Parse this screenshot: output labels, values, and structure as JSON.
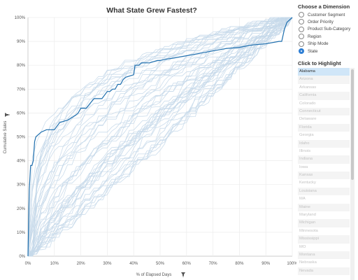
{
  "chart_data": {
    "type": "line",
    "title": "What State Grew Fastest?",
    "xlabel": "% of Elapsed Days",
    "ylabel": "Cumulative Sales",
    "x_ticks": [
      "0%",
      "10%",
      "20%",
      "30%",
      "40%",
      "50%",
      "60%",
      "70%",
      "80%",
      "90%",
      "100%"
    ],
    "y_ticks": [
      "0%",
      "10%",
      "20%",
      "30%",
      "40%",
      "50%",
      "60%",
      "70%",
      "80%",
      "90%",
      "100%"
    ],
    "xlim": [
      0,
      100
    ],
    "ylim": [
      0,
      100
    ],
    "grid": true,
    "highlighted_color": "#1f6fae",
    "background_series_color": "#c6d9ea",
    "highlighted_series": {
      "name": "Alabama",
      "x": [
        0,
        0.5,
        1,
        1.5,
        2,
        2.5,
        3,
        4,
        5,
        7,
        9,
        10,
        12,
        15,
        18,
        19,
        20,
        22,
        25,
        28,
        30,
        31,
        32,
        33,
        34,
        35,
        36,
        37,
        40,
        40.5,
        42,
        43,
        46,
        49,
        50,
        52,
        55,
        60,
        65,
        70,
        75,
        80,
        85,
        90,
        95,
        96,
        97,
        98,
        100
      ],
      "y": [
        0,
        28,
        38,
        38,
        40,
        48,
        50,
        51,
        52,
        53,
        53,
        53,
        56,
        57,
        59,
        60,
        62,
        62,
        66,
        66,
        69,
        69,
        70,
        70,
        72,
        72,
        74,
        75,
        76,
        80,
        80,
        81,
        81,
        82,
        82,
        82.5,
        83,
        84,
        85,
        86,
        87,
        87.5,
        88.5,
        89,
        90,
        90,
        95,
        98,
        100
      ]
    },
    "background_series_count": 48
  },
  "dimension_panel": {
    "title": "Choose a Dimension",
    "options": [
      "Customer Segment",
      "Order Priority",
      "Product Sub-Category",
      "Region",
      "Ship Mode",
      "State"
    ],
    "selected": "State",
    "accent_color": "#2f7fd4"
  },
  "highlight_panel": {
    "title": "Click to Highlight",
    "items": [
      "Alabama",
      "Arizona",
      "Arkansas",
      "California",
      "Colorado",
      "Connecticut",
      "Delaware",
      "Florida",
      "Georgia",
      "Idaho",
      "Illinois",
      "Indiana",
      "Iowa",
      "Kansas",
      "Kentucky",
      "Louisiana",
      "MA",
      "Maine",
      "Maryland",
      "Michigan",
      "Minnesota",
      "Mississippi",
      "MO",
      "Montana",
      "Nebraska",
      "Nevada"
    ],
    "selected": "Alabama"
  },
  "icons": {
    "ylabel_pin": "pin-icon",
    "xlabel_pin": "pin-icon"
  }
}
